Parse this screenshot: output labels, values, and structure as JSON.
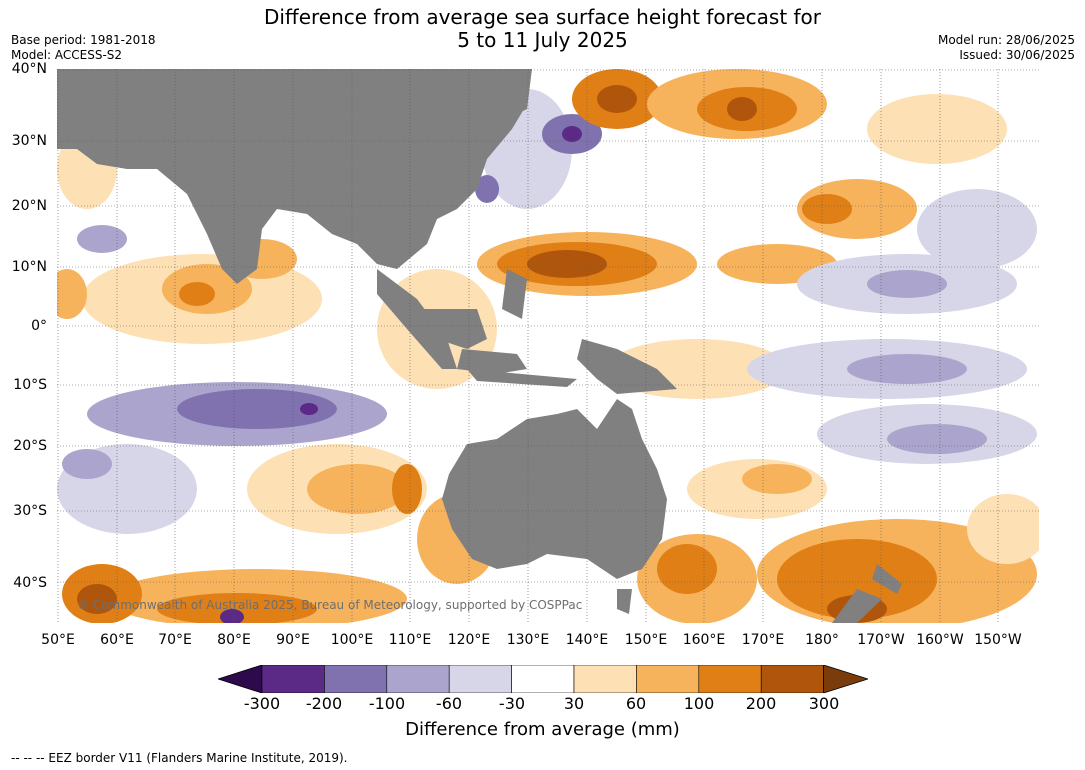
{
  "title_line1": "Difference from average sea surface height forecast for",
  "title_line2": "5 to 11 July 2025",
  "base_period": "Base period: 1981-2018",
  "model": "Model: ACCESS-S2",
  "model_run": "Model run: 28/06/2025",
  "issued": "Issued: 30/06/2025",
  "lat_labels": [
    "40°N",
    "30°N",
    "20°N",
    "10°N",
    "0°",
    "10°S",
    "20°S",
    "30°S",
    "40°S"
  ],
  "lon_labels": [
    "50°E",
    "60°E",
    "70°E",
    "80°E",
    "90°E",
    "100°E",
    "110°E",
    "120°E",
    "130°E",
    "140°E",
    "150°E",
    "160°E",
    "170°E",
    "180°",
    "170°W",
    "160°W",
    "150°W"
  ],
  "credit": "© Commonwealth of Australia 2025, Bureau of Meteorology, supported by COSPPac",
  "colorbar": {
    "ticks": [
      "-300",
      "-200",
      "-100",
      "-60",
      "-30",
      "30",
      "60",
      "100",
      "200",
      "300"
    ],
    "colors": [
      "#5a2a86",
      "#8072af",
      "#aba5cd",
      "#d6d6e8",
      "#ffffff",
      "#fde0b4",
      "#f7b35c",
      "#e07f16",
      "#b0560c"
    ],
    "under_color": "#2d0a4b",
    "over_color": "#7a3c0a",
    "label": "Difference from average (mm)"
  },
  "land_color": "#808080",
  "footer": "--  --  -- EEZ border V11 (Flanders Marine Institute, 2019)."
}
